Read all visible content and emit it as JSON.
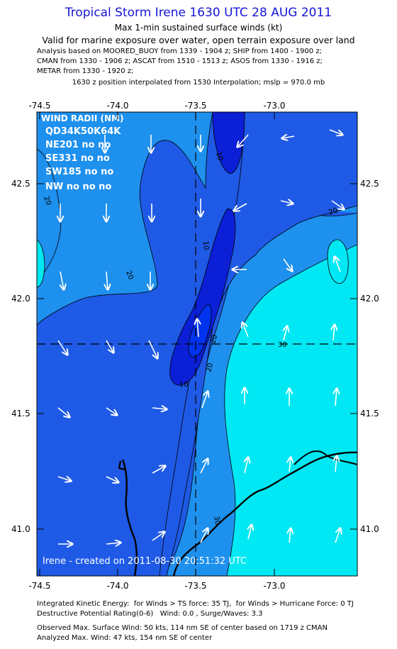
{
  "header": {
    "title": "Tropical Storm Irene 1630 UTC 28 AUG 2011",
    "subtitle": "Max 1-min sustained surface winds (kt)",
    "validity": "Valid for marine exposure over water, open terrain exposure over land",
    "analysis_lines": [
      "Analysis based on MOORED_BUOY from 1339 - 1904 z; SHIP from 1400 - 1900 z;",
      "CMAN from 1330 - 1906 z; ASCAT from 1510 - 1513 z; ASOS from 1330 - 1916 z;",
      "METAR from 1330 - 1920 z;"
    ],
    "interpolation": "1630 z position interpolated from 1530 Interpolation; mslp = 970.0 mb"
  },
  "map": {
    "lon_ticks": [
      "-74.5",
      "-74.0",
      "-73.5",
      "-73.0"
    ],
    "lat_ticks": [
      "42.5",
      "42.0",
      "41.5",
      "41.0"
    ],
    "contour_labels": [
      "10",
      "10",
      "10",
      "20",
      "20",
      "20",
      "20",
      "20",
      "30",
      "30"
    ],
    "center": {
      "lon": -73.5,
      "lat": 41.8
    },
    "wind_radii": {
      "title": "WIND RADII (NM)",
      "header": "QD34K50K64K",
      "rows": [
        "NE201 no no",
        "SE331 no no",
        "SW185 no no",
        "NW no no no"
      ]
    },
    "credit": "Irene - created on 2011-08-30 20:51:32 UTC",
    "colors": {
      "band_0_10": "#0b1fd6",
      "band_10_20": "#1f5ae6",
      "band_20_30": "#1e90ee",
      "band_30_40": "#00e8f4",
      "land_line": "#000000"
    }
  },
  "footer": {
    "lines": [
      "Integrated Kinetic Energy:  for Winds > TS force: 35 TJ,  for Winds > Hurricane Force: 0 TJ",
      "Destructive Potential Rating(0-6)   Wind: 0.0 , Surge/Waves: 3.3",
      "Observed Max. Surface Wind: 50 kts, 114 nm SE of center based on 1719 z CMAN",
      "Analyzed Max. Wind: 47 kts, 154 nm SE of center"
    ]
  }
}
